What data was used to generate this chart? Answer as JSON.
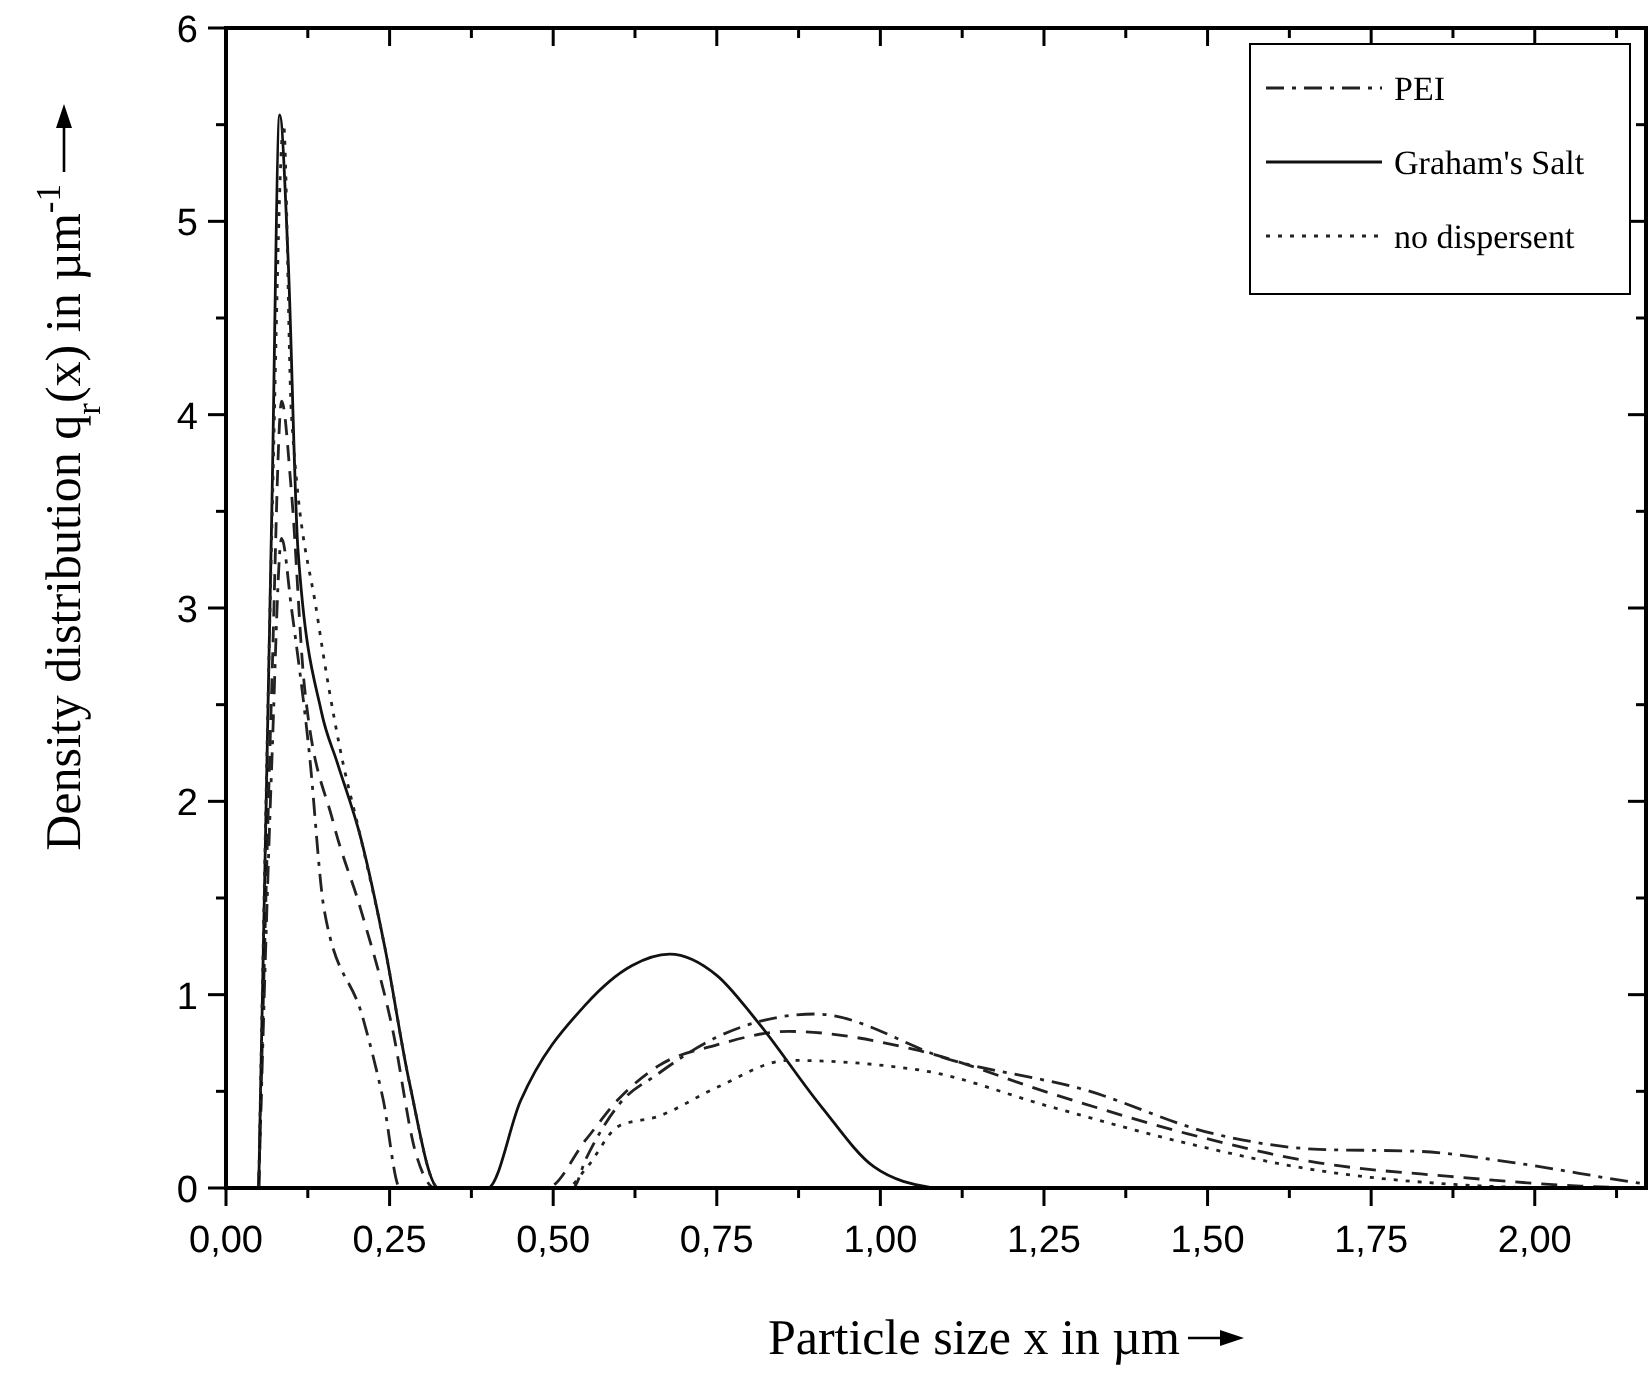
{
  "chart_data": {
    "type": "line",
    "xlabel": "Particle size x in µm",
    "ylabel": "Density distribution q$_{r}$(x) in µm$^{-1}$",
    "xlim": [
      0,
      2.17
    ],
    "ylim": [
      0,
      6
    ],
    "xticks": [
      {
        "value": 0,
        "label": "0,00"
      },
      {
        "value": 0.125,
        "label": null
      },
      {
        "value": 0.25,
        "label": "0,25"
      },
      {
        "value": 0.375,
        "label": null
      },
      {
        "value": 0.5,
        "label": "0,50"
      },
      {
        "value": 0.625,
        "label": null
      },
      {
        "value": 0.75,
        "label": "0,75"
      },
      {
        "value": 0.875,
        "label": null
      },
      {
        "value": 1,
        "label": "1,00"
      },
      {
        "value": 1.125,
        "label": null
      },
      {
        "value": 1.25,
        "label": "1,25"
      },
      {
        "value": 1.375,
        "label": null
      },
      {
        "value": 1.5,
        "label": "1,50"
      },
      {
        "value": 1.625,
        "label": null
      },
      {
        "value": 1.75,
        "label": "1,75"
      },
      {
        "value": 1.875,
        "label": null
      },
      {
        "value": 2,
        "label": "2,00"
      },
      {
        "value": 2.125,
        "label": null
      }
    ],
    "yticks": [
      0,
      {
        "value": 0.5,
        "label": null
      },
      1,
      {
        "value": 1.5,
        "label": null
      },
      2,
      {
        "value": 2.5,
        "label": null
      },
      3,
      {
        "value": 3.5,
        "label": null
      },
      4,
      {
        "value": 4.5,
        "label": null
      },
      5,
      {
        "value": 5.5,
        "label": null
      },
      6
    ],
    "legend": "top right",
    "grid": false,
    "series": [
      {
        "name": "PEI",
        "color": "#222222",
        "line_style": "dashdot",
        "x": [
          0.05,
          0.07,
          0.085,
          0.1,
          0.127,
          0.15,
          0.21,
          0.24,
          0.266,
          0.53,
          0.55,
          0.6,
          0.66,
          0.75,
          0.9,
          1.11,
          1.31,
          1.51,
          1.67,
          1.82,
          1.97,
          2.15,
          2.17
        ],
        "values": [
          0,
          2.2,
          3.36,
          3.0,
          2.26,
          1.44,
          0.87,
          0.46,
          0,
          0,
          0.15,
          0.43,
          0.59,
          0.78,
          0.9,
          0.66,
          0.51,
          0.28,
          0.2,
          0.19,
          0.13,
          0.03,
          0.02
        ]
      },
      {
        "color": "#222222",
        "line_style": "dashed",
        "x": [
          0.05,
          0.07,
          0.085,
          0.1,
          0.12,
          0.164,
          0.206,
          0.254,
          0.29,
          0.32,
          0.49,
          0.55,
          0.6,
          0.66,
          0.75,
          0.86,
          1.06,
          1.26,
          1.47,
          1.67,
          1.87,
          2.07,
          2.17
        ],
        "values": [
          0,
          2.6,
          4.07,
          3.6,
          2.59,
          1.89,
          1.44,
          0.83,
          0.18,
          0,
          0,
          0.25,
          0.46,
          0.63,
          0.74,
          0.81,
          0.71,
          0.49,
          0.28,
          0.13,
          0.06,
          0.01,
          0
        ]
      },
      {
        "name": "Graham's Salt",
        "color": "#111111",
        "line_style": "solid",
        "x": [
          0.05,
          0.07,
          0.082,
          0.095,
          0.11,
          0.146,
          0.17,
          0.206,
          0.243,
          0.28,
          0.325,
          0.4,
          0.45,
          0.55,
          0.62,
          0.678,
          0.75,
          0.81,
          0.91,
          0.99,
          1.08
        ],
        "values": [
          0,
          3.5,
          5.55,
          4.8,
          3.3,
          2.46,
          2.2,
          1.81,
          1.24,
          0.55,
          0,
          0,
          0.45,
          0.95,
          1.15,
          1.21,
          1.1,
          0.87,
          0.42,
          0.11,
          0
        ]
      },
      {
        "name": "no dispersent",
        "color": "#222222",
        "line_style": "dotted",
        "x": [
          0.05,
          0.07,
          0.088,
          0.1,
          0.14,
          0.175,
          0.206,
          0.243,
          0.28,
          0.325,
          0.52,
          0.55,
          0.6,
          0.66,
          0.75,
          0.86,
          1.06,
          1.26,
          1.47,
          1.67,
          1.87,
          2.0
        ],
        "values": [
          0,
          3.4,
          5.5,
          4.0,
          2.95,
          2.26,
          1.81,
          1.24,
          0.55,
          0,
          0,
          0.1,
          0.32,
          0.37,
          0.52,
          0.66,
          0.61,
          0.42,
          0.23,
          0.09,
          0.02,
          0
        ]
      }
    ]
  }
}
